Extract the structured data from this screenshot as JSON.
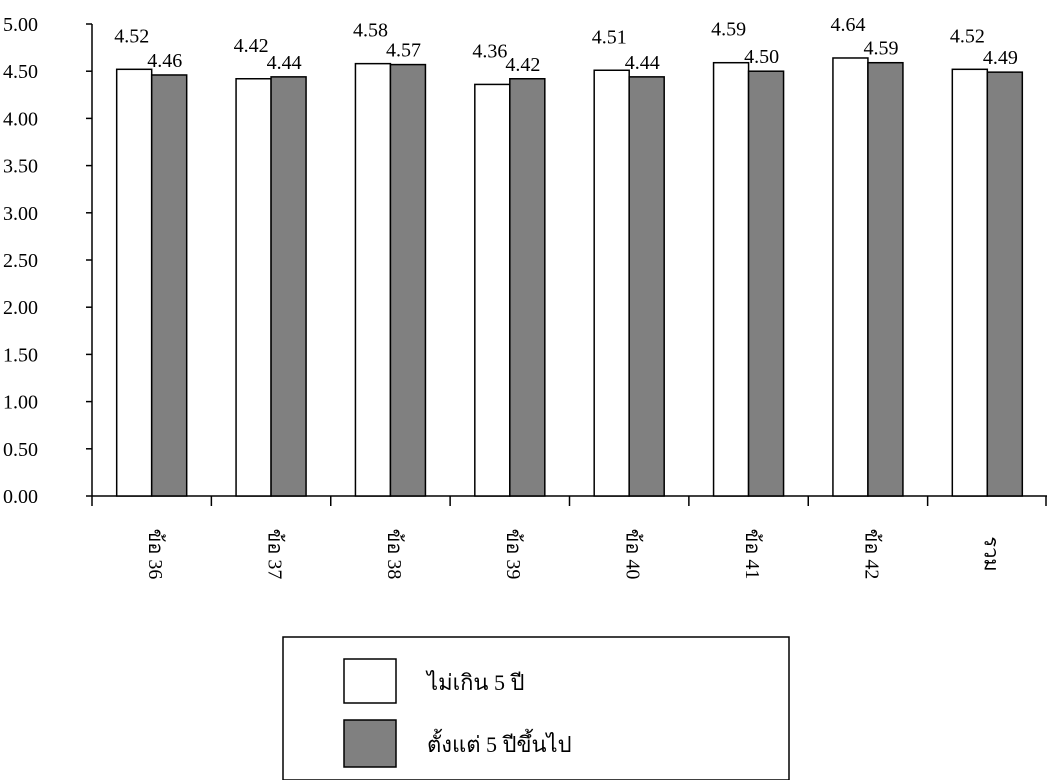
{
  "chart_data": {
    "type": "bar",
    "categories": [
      "ข้อ 36",
      "ข้อ 37",
      "ข้อ 38",
      "ข้อ 39",
      "ข้อ 40",
      "ข้อ 41",
      "ข้อ 42",
      "รวม"
    ],
    "series": [
      {
        "name": "ไม่เกิน 5 ปี",
        "values": [
          4.52,
          4.42,
          4.58,
          4.36,
          4.51,
          4.59,
          4.64,
          4.52
        ],
        "color": "#ffffff"
      },
      {
        "name": "ตั้งแต่ 5 ปีขึ้นไป",
        "values": [
          4.46,
          4.44,
          4.57,
          4.42,
          4.44,
          4.5,
          4.59,
          4.49
        ],
        "color": "#808080"
      }
    ],
    "data_labels": [
      [
        "4.52",
        "4.42",
        "4.58",
        "4.36",
        "4.51",
        "4.59",
        "4.64",
        "4.52"
      ],
      [
        "4.46",
        "4.44",
        "4.57",
        "4.42",
        "4.44",
        "4.50",
        "4.59",
        "4.49"
      ]
    ],
    "y_ticks": [
      "0.00",
      "0.50",
      "1.00",
      "1.50",
      "2.00",
      "2.50",
      "3.00",
      "3.50",
      "4.00",
      "4.50",
      "5.00"
    ],
    "ylim": [
      0,
      5
    ],
    "title": "",
    "xlabel": "",
    "ylabel": "",
    "grid": false,
    "legend_position": "bottom-center",
    "category_label_orientation": "rotated-90-clockwise"
  }
}
